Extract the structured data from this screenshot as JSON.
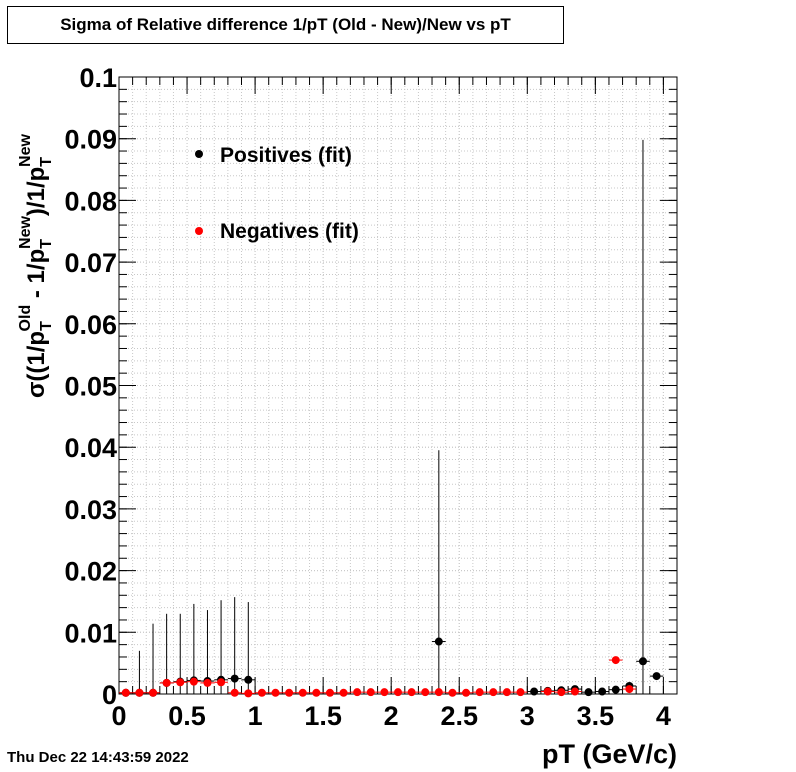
{
  "chart_data": {
    "type": "scatter",
    "title": "Sigma of Relative difference 1/pT (Old - New)/New vs pT",
    "xlabel": "pT (GeV/c)",
    "ylabel": {
      "prefix": "σ((1/p",
      "sub1": "T",
      "sup1": "Old",
      "mid": " - 1/p",
      "sub2": "T",
      "sup2": "New",
      "end": ")/1/p",
      "sub3": "T",
      "sup3": "New"
    },
    "xlim": [
      0,
      4.1
    ],
    "ylim": [
      0,
      0.1
    ],
    "xticks": [
      {
        "v": 0,
        "label": "0"
      },
      {
        "v": 0.5,
        "label": "0.5"
      },
      {
        "v": 1,
        "label": "1"
      },
      {
        "v": 1.5,
        "label": "1.5"
      },
      {
        "v": 2,
        "label": "2"
      },
      {
        "v": 2.5,
        "label": "2.5"
      },
      {
        "v": 3,
        "label": "3"
      },
      {
        "v": 3.5,
        "label": "3.5"
      },
      {
        "v": 4,
        "label": "4"
      }
    ],
    "yticks": [
      {
        "v": 0,
        "label": "0"
      },
      {
        "v": 0.01,
        "label": "0.01"
      },
      {
        "v": 0.02,
        "label": "0.02"
      },
      {
        "v": 0.03,
        "label": "0.03"
      },
      {
        "v": 0.04,
        "label": "0.04"
      },
      {
        "v": 0.05,
        "label": "0.05"
      },
      {
        "v": 0.06,
        "label": "0.06"
      },
      {
        "v": 0.07,
        "label": "0.07"
      },
      {
        "v": 0.08,
        "label": "0.08"
      },
      {
        "v": 0.09,
        "label": "0.09"
      },
      {
        "v": 0.1,
        "label": "0.1"
      }
    ],
    "grid": true,
    "legend_position": "top-left",
    "series": [
      {
        "name": "Positives (fit)",
        "color": "#000000",
        "points": [
          {
            "x": 0.05,
            "y": 0.0002,
            "err": 0.0
          },
          {
            "x": 0.15,
            "y": 0.0002,
            "err": 0.0068
          },
          {
            "x": 0.25,
            "y": 0.0002,
            "err": 0.0112
          },
          {
            "x": 0.35,
            "y": 0.0018,
            "err": 0.0112
          },
          {
            "x": 0.45,
            "y": 0.002,
            "err": 0.011
          },
          {
            "x": 0.55,
            "y": 0.0022,
            "err": 0.0124
          },
          {
            "x": 0.65,
            "y": 0.0021,
            "err": 0.0115
          },
          {
            "x": 0.75,
            "y": 0.0023,
            "err": 0.0129
          },
          {
            "x": 0.85,
            "y": 0.0025,
            "err": 0.0132
          },
          {
            "x": 0.95,
            "y": 0.0023,
            "err": 0.0126
          },
          {
            "x": 2.35,
            "y": 0.0085,
            "err": 0.031
          },
          {
            "x": 3.05,
            "y": 0.0004,
            "err": 0.0
          },
          {
            "x": 3.15,
            "y": 0.0005,
            "err": 0.0
          },
          {
            "x": 3.25,
            "y": 0.0006,
            "err": 0.0
          },
          {
            "x": 3.35,
            "y": 0.0008,
            "err": 0.0
          },
          {
            "x": 3.45,
            "y": 0.0003,
            "err": 0.0
          },
          {
            "x": 3.55,
            "y": 0.0004,
            "err": 0.0
          },
          {
            "x": 3.65,
            "y": 0.0007,
            "err": 0.0
          },
          {
            "x": 3.75,
            "y": 0.0013,
            "err": 0.0
          },
          {
            "x": 3.85,
            "y": 0.0053,
            "err": 0.0845
          },
          {
            "x": 3.95,
            "y": 0.0029,
            "err": 0.0
          }
        ]
      },
      {
        "name": "Negatives (fit)",
        "color": "#ff0000",
        "points": [
          {
            "x": 0.05,
            "y": 0.0002
          },
          {
            "x": 0.15,
            "y": 0.0002
          },
          {
            "x": 0.25,
            "y": 0.0002
          },
          {
            "x": 0.35,
            "y": 0.0018
          },
          {
            "x": 0.45,
            "y": 0.0019
          },
          {
            "x": 0.55,
            "y": 0.002
          },
          {
            "x": 0.65,
            "y": 0.0018
          },
          {
            "x": 0.75,
            "y": 0.0019
          },
          {
            "x": 0.85,
            "y": 0.0002
          },
          {
            "x": 0.95,
            "y": 0.0001
          },
          {
            "x": 1.05,
            "y": 0.0002
          },
          {
            "x": 1.15,
            "y": 0.0002
          },
          {
            "x": 1.25,
            "y": 0.0002
          },
          {
            "x": 1.35,
            "y": 0.0002
          },
          {
            "x": 1.45,
            "y": 0.0002
          },
          {
            "x": 1.55,
            "y": 0.0002
          },
          {
            "x": 1.65,
            "y": 0.0002
          },
          {
            "x": 1.75,
            "y": 0.0003
          },
          {
            "x": 1.85,
            "y": 0.0003
          },
          {
            "x": 1.95,
            "y": 0.0003
          },
          {
            "x": 2.05,
            "y": 0.0003
          },
          {
            "x": 2.15,
            "y": 0.0003
          },
          {
            "x": 2.25,
            "y": 0.0003
          },
          {
            "x": 2.35,
            "y": 0.0003
          },
          {
            "x": 2.45,
            "y": 0.0002
          },
          {
            "x": 2.55,
            "y": 0.0002
          },
          {
            "x": 2.65,
            "y": 0.0003
          },
          {
            "x": 2.75,
            "y": 0.0003
          },
          {
            "x": 2.85,
            "y": 0.0003
          },
          {
            "x": 2.95,
            "y": 0.0003
          },
          {
            "x": 3.15,
            "y": 0.0004
          },
          {
            "x": 3.25,
            "y": 0.0003
          },
          {
            "x": 3.35,
            "y": 0.0004
          },
          {
            "x": 3.65,
            "y": 0.0055
          },
          {
            "x": 3.75,
            "y": 0.0008
          }
        ]
      }
    ]
  },
  "footer": {
    "timestamp": "Thu Dec 22 14:43:59 2022"
  }
}
